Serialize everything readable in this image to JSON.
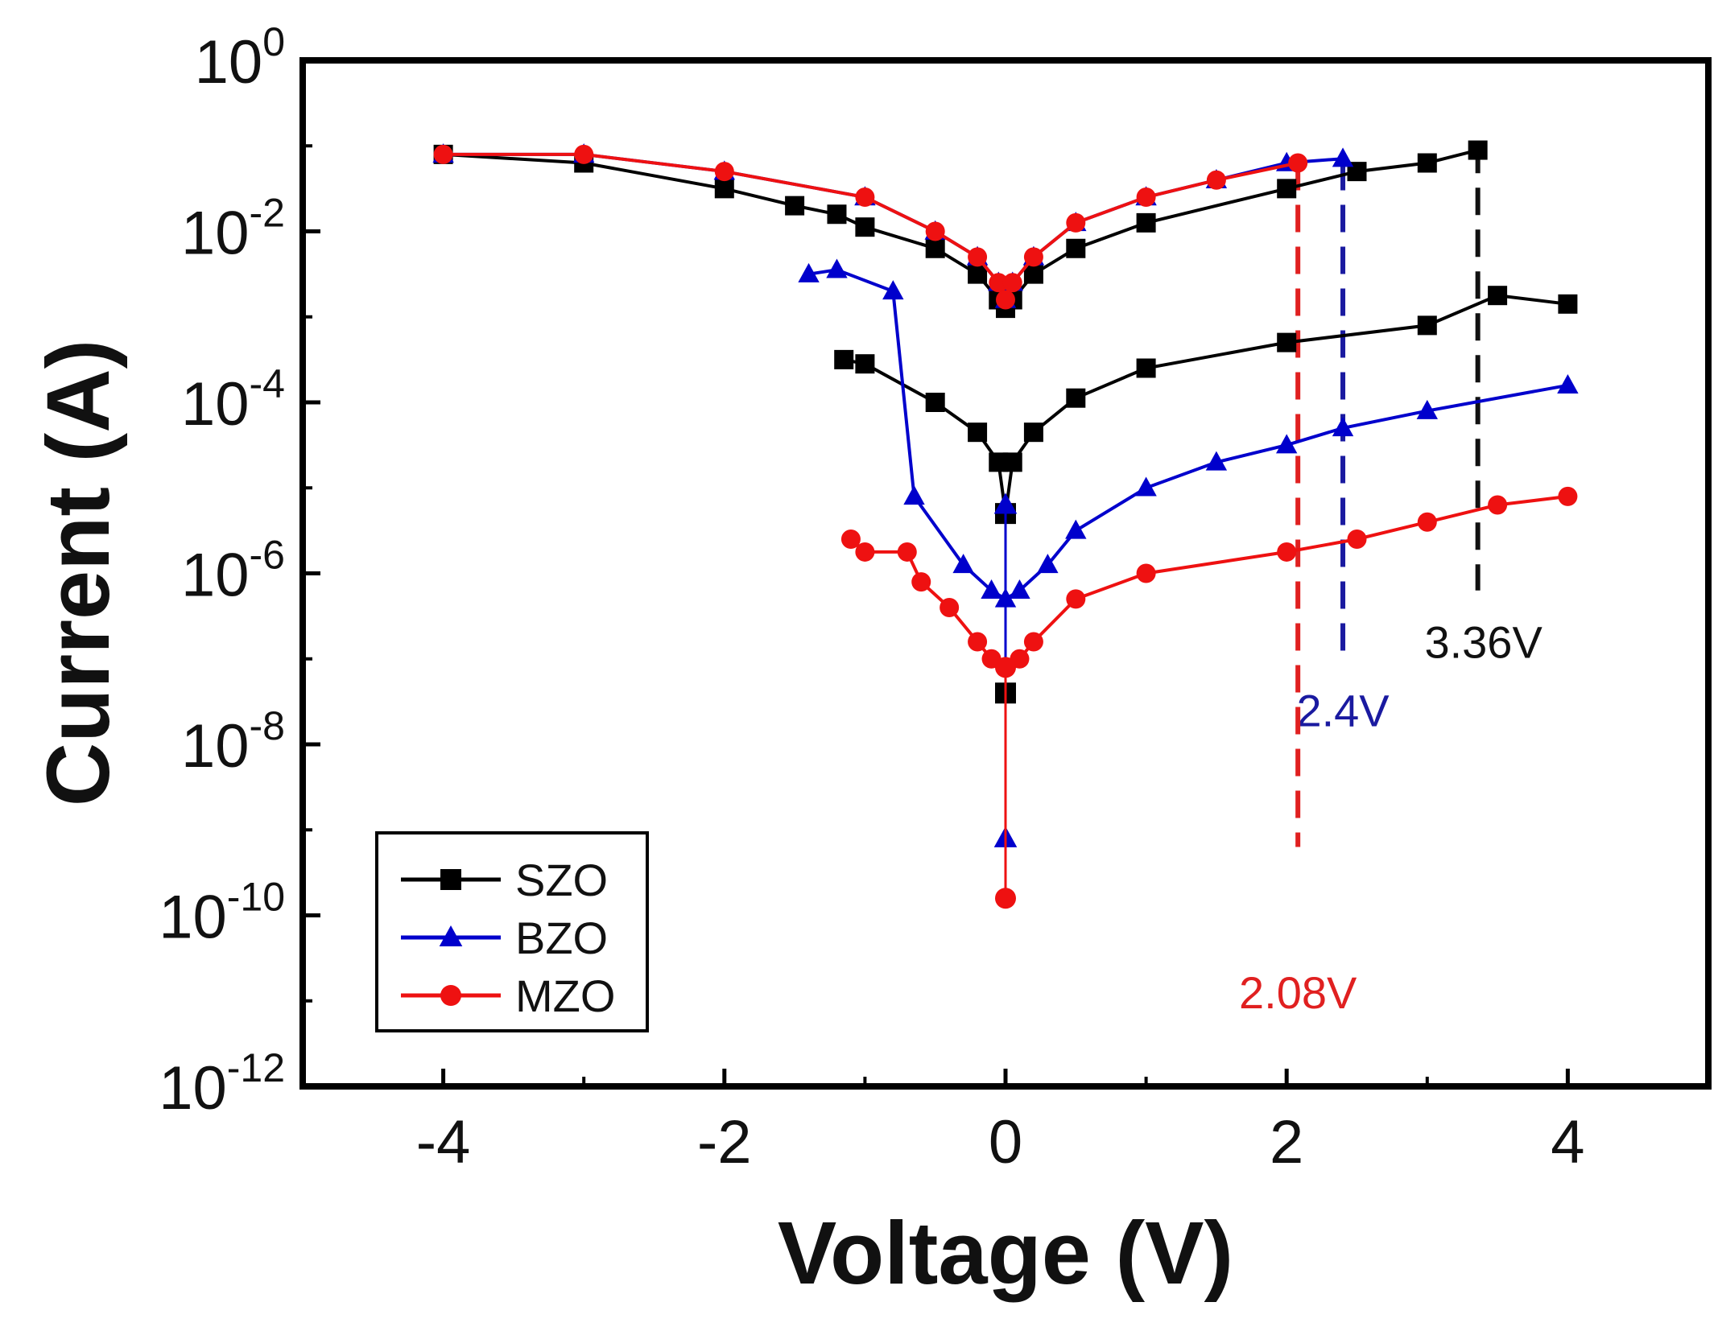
{
  "chart_data": {
    "type": "line",
    "title": "",
    "xlabel": "Voltage (V)",
    "ylabel": "Current (A)",
    "yscale": "log",
    "xlim": [
      -5,
      5
    ],
    "ylim_exponents": [
      -12,
      0
    ],
    "x_ticks": [
      {
        "value": -4,
        "label": "-4"
      },
      {
        "value": -2,
        "label": "-2"
      },
      {
        "value": 0,
        "label": "0"
      },
      {
        "value": 2,
        "label": "2"
      },
      {
        "value": 4,
        "label": "4"
      }
    ],
    "y_ticks": [
      {
        "exp": 0,
        "base": "10",
        "sup": "0"
      },
      {
        "exp": -2,
        "base": "10",
        "sup": "-2"
      },
      {
        "exp": -4,
        "base": "10",
        "sup": "-4"
      },
      {
        "exp": -6,
        "base": "10",
        "sup": "-6"
      },
      {
        "exp": -8,
        "base": "10",
        "sup": "-8"
      },
      {
        "exp": -10,
        "base": "10",
        "sup": "-10"
      },
      {
        "exp": -12,
        "base": "10",
        "sup": "-12"
      }
    ],
    "legend": {
      "position": "lower-left",
      "entries": [
        {
          "label": "SZO",
          "color": "#000000",
          "marker": "square"
        },
        {
          "label": "BZO",
          "color": "#0000cc",
          "marker": "triangle"
        },
        {
          "label": "MZO",
          "color": "#ee1111",
          "marker": "circle"
        }
      ]
    },
    "series": [
      {
        "name": "SZO",
        "color": "#000000",
        "marker": "square",
        "upper_branch": [
          [
            -4.0,
            -1.1
          ],
          [
            -3.0,
            -1.2
          ],
          [
            -2.0,
            -1.5
          ],
          [
            -1.5,
            -1.7
          ],
          [
            -1.2,
            -1.8
          ],
          [
            -1.0,
            -1.95
          ],
          [
            -0.5,
            -2.2
          ],
          [
            -0.2,
            -2.5
          ],
          [
            -0.05,
            -2.8
          ],
          [
            0.0,
            -2.9
          ],
          [
            0.05,
            -2.8
          ],
          [
            0.2,
            -2.5
          ],
          [
            0.5,
            -2.2
          ],
          [
            1.0,
            -1.9
          ],
          [
            2.0,
            -1.5
          ],
          [
            2.5,
            -1.3
          ],
          [
            3.0,
            -1.2
          ],
          [
            3.36,
            -1.05
          ]
        ],
        "lower_branch": [
          [
            -1.15,
            -3.5
          ],
          [
            -1.0,
            -3.55
          ],
          [
            -0.5,
            -4.0
          ],
          [
            -0.2,
            -4.35
          ],
          [
            -0.05,
            -4.7
          ],
          [
            0.0,
            -5.3
          ],
          [
            0.05,
            -4.7
          ],
          [
            0.2,
            -4.35
          ],
          [
            0.5,
            -3.95
          ],
          [
            1.0,
            -3.6
          ],
          [
            2.0,
            -3.3
          ],
          [
            3.0,
            -3.1
          ],
          [
            3.5,
            -2.75
          ],
          [
            4.0,
            -2.85
          ]
        ],
        "center_points": [
          [
            0.0,
            -5.3
          ],
          [
            0.0,
            -7.4
          ]
        ]
      },
      {
        "name": "BZO",
        "color": "#0000cc",
        "marker": "triangle",
        "upper_branch": [
          [
            -4.0,
            -1.1
          ],
          [
            -3.0,
            -1.1
          ],
          [
            -2.0,
            -1.3
          ],
          [
            -1.0,
            -1.6
          ],
          [
            -0.5,
            -2.0
          ],
          [
            -0.2,
            -2.3
          ],
          [
            -0.05,
            -2.6
          ],
          [
            0.0,
            -2.8
          ],
          [
            0.05,
            -2.6
          ],
          [
            0.2,
            -2.3
          ],
          [
            0.5,
            -1.9
          ],
          [
            1.0,
            -1.6
          ],
          [
            1.5,
            -1.4
          ],
          [
            2.0,
            -1.2
          ],
          [
            2.4,
            -1.15
          ]
        ],
        "lower_branch": [
          [
            -1.4,
            -2.5
          ],
          [
            -1.2,
            -2.45
          ],
          [
            -0.8,
            -2.7
          ],
          [
            -0.65,
            -5.1
          ],
          [
            -0.3,
            -5.9
          ],
          [
            -0.1,
            -6.2
          ],
          [
            0.0,
            -6.3
          ],
          [
            0.1,
            -6.2
          ],
          [
            0.3,
            -5.9
          ],
          [
            0.5,
            -5.5
          ],
          [
            1.0,
            -5.0
          ],
          [
            1.5,
            -4.7
          ],
          [
            2.0,
            -4.5
          ],
          [
            2.4,
            -4.3
          ],
          [
            3.0,
            -4.1
          ],
          [
            4.0,
            -3.8
          ]
        ],
        "center_points": [
          [
            0.0,
            -5.2
          ],
          [
            0.0,
            -9.1
          ]
        ]
      },
      {
        "name": "MZO",
        "color": "#ee1111",
        "marker": "circle",
        "upper_branch": [
          [
            -4.0,
            -1.1
          ],
          [
            -3.0,
            -1.1
          ],
          [
            -2.0,
            -1.3
          ],
          [
            -1.0,
            -1.6
          ],
          [
            -0.5,
            -2.0
          ],
          [
            -0.2,
            -2.3
          ],
          [
            -0.05,
            -2.6
          ],
          [
            0.0,
            -2.8
          ],
          [
            0.05,
            -2.6
          ],
          [
            0.2,
            -2.3
          ],
          [
            0.5,
            -1.9
          ],
          [
            1.0,
            -1.6
          ],
          [
            1.5,
            -1.4
          ],
          [
            2.08,
            -1.2
          ]
        ],
        "lower_branch": [
          [
            -1.1,
            -5.6
          ],
          [
            -1.0,
            -5.75
          ],
          [
            -0.7,
            -5.75
          ],
          [
            -0.6,
            -6.1
          ],
          [
            -0.4,
            -6.4
          ],
          [
            -0.2,
            -6.8
          ],
          [
            -0.1,
            -7.0
          ],
          [
            0.0,
            -7.1
          ],
          [
            0.1,
            -7.0
          ],
          [
            0.2,
            -6.8
          ],
          [
            0.5,
            -6.3
          ],
          [
            1.0,
            -6.0
          ],
          [
            2.0,
            -5.75
          ],
          [
            2.5,
            -5.6
          ],
          [
            3.0,
            -5.4
          ],
          [
            3.5,
            -5.2
          ],
          [
            4.0,
            -5.1
          ]
        ],
        "center_points": [
          [
            0.0,
            -7.1
          ],
          [
            0.0,
            -9.8
          ]
        ]
      }
    ],
    "annotations": [
      {
        "text": "3.36V",
        "x": 3.36,
        "color": "#111111",
        "line_from_exp": -1.0,
        "line_to_exp": -6.2,
        "label_x": 3.4,
        "label_exp": -6.8
      },
      {
        "text": "2.4V",
        "x": 2.4,
        "color": "#1a1aa0",
        "line_from_exp": -1.2,
        "line_to_exp": -7.0,
        "label_x": 2.4,
        "label_exp": -7.6
      },
      {
        "text": "2.08V",
        "x": 2.08,
        "color": "#e02020",
        "line_from_exp": -1.2,
        "line_to_exp": -9.2,
        "label_x": 2.08,
        "label_exp": -10.9
      }
    ]
  }
}
